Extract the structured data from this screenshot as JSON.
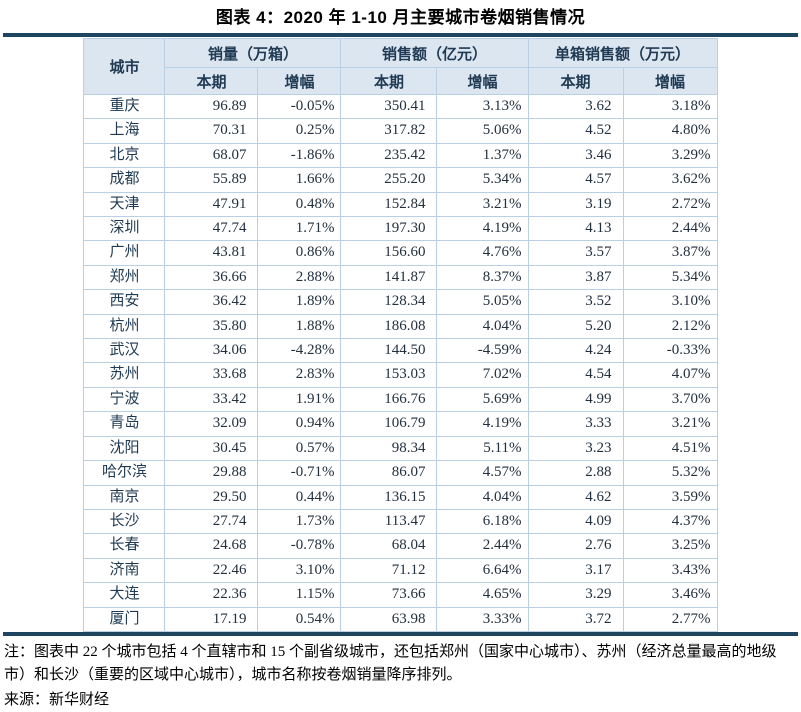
{
  "title": "图表 4：2020 年 1-10 月主要城市卷烟销售情况",
  "colors": {
    "rule": "#1e4660",
    "table_border": "#b9cfe4",
    "header_bg": "#dce6f1",
    "header_text": "#1f3a52",
    "body_text": "#22303e"
  },
  "notes": {
    "note": "注：图表中 22 个城市包括 4 个直辖市和 15 个副省级城市，还包括郑州（国家中心城市）、苏州（经济总量最高的地级市）和长沙（重要的区域中心城市），城市名称按卷烟销量降序排列。",
    "source": "来源：新华财经"
  },
  "chart_data": {
    "type": "table",
    "title": "图表 4：2020 年 1-10 月主要城市卷烟销售情况",
    "column_groups": [
      "城市",
      "销量（万箱）",
      "销售额（亿元）",
      "单箱销售额（万元）"
    ],
    "sub_columns": [
      "本期",
      "增幅",
      "本期",
      "增幅",
      "本期",
      "增幅"
    ],
    "rows": [
      [
        "重庆",
        "96.89",
        "-0.05%",
        "350.41",
        "3.13%",
        "3.62",
        "3.18%"
      ],
      [
        "上海",
        "70.31",
        "0.25%",
        "317.82",
        "5.06%",
        "4.52",
        "4.80%"
      ],
      [
        "北京",
        "68.07",
        "-1.86%",
        "235.42",
        "1.37%",
        "3.46",
        "3.29%"
      ],
      [
        "成都",
        "55.89",
        "1.66%",
        "255.20",
        "5.34%",
        "4.57",
        "3.62%"
      ],
      [
        "天津",
        "47.91",
        "0.48%",
        "152.84",
        "3.21%",
        "3.19",
        "2.72%"
      ],
      [
        "深圳",
        "47.74",
        "1.71%",
        "197.30",
        "4.19%",
        "4.13",
        "2.44%"
      ],
      [
        "广州",
        "43.81",
        "0.86%",
        "156.60",
        "4.76%",
        "3.57",
        "3.87%"
      ],
      [
        "郑州",
        "36.66",
        "2.88%",
        "141.87",
        "8.37%",
        "3.87",
        "5.34%"
      ],
      [
        "西安",
        "36.42",
        "1.89%",
        "128.34",
        "5.05%",
        "3.52",
        "3.10%"
      ],
      [
        "杭州",
        "35.80",
        "1.88%",
        "186.08",
        "4.04%",
        "5.20",
        "2.12%"
      ],
      [
        "武汉",
        "34.06",
        "-4.28%",
        "144.50",
        "-4.59%",
        "4.24",
        "-0.33%"
      ],
      [
        "苏州",
        "33.68",
        "2.83%",
        "153.03",
        "7.02%",
        "4.54",
        "4.07%"
      ],
      [
        "宁波",
        "33.42",
        "1.91%",
        "166.76",
        "5.69%",
        "4.99",
        "3.70%"
      ],
      [
        "青岛",
        "32.09",
        "0.94%",
        "106.79",
        "4.19%",
        "3.33",
        "3.21%"
      ],
      [
        "沈阳",
        "30.45",
        "0.57%",
        "98.34",
        "5.11%",
        "3.23",
        "4.51%"
      ],
      [
        "哈尔滨",
        "29.88",
        "-0.71%",
        "86.07",
        "4.57%",
        "2.88",
        "5.32%"
      ],
      [
        "南京",
        "29.50",
        "0.44%",
        "136.15",
        "4.04%",
        "4.62",
        "3.59%"
      ],
      [
        "长沙",
        "27.74",
        "1.73%",
        "113.47",
        "6.18%",
        "4.09",
        "4.37%"
      ],
      [
        "长春",
        "24.68",
        "-0.78%",
        "68.04",
        "2.44%",
        "2.76",
        "3.25%"
      ],
      [
        "济南",
        "22.46",
        "3.10%",
        "71.12",
        "6.64%",
        "3.17",
        "3.43%"
      ],
      [
        "大连",
        "22.36",
        "1.15%",
        "73.66",
        "4.65%",
        "3.29",
        "3.46%"
      ],
      [
        "厦门",
        "17.19",
        "0.54%",
        "63.98",
        "3.33%",
        "3.72",
        "2.77%"
      ]
    ]
  }
}
